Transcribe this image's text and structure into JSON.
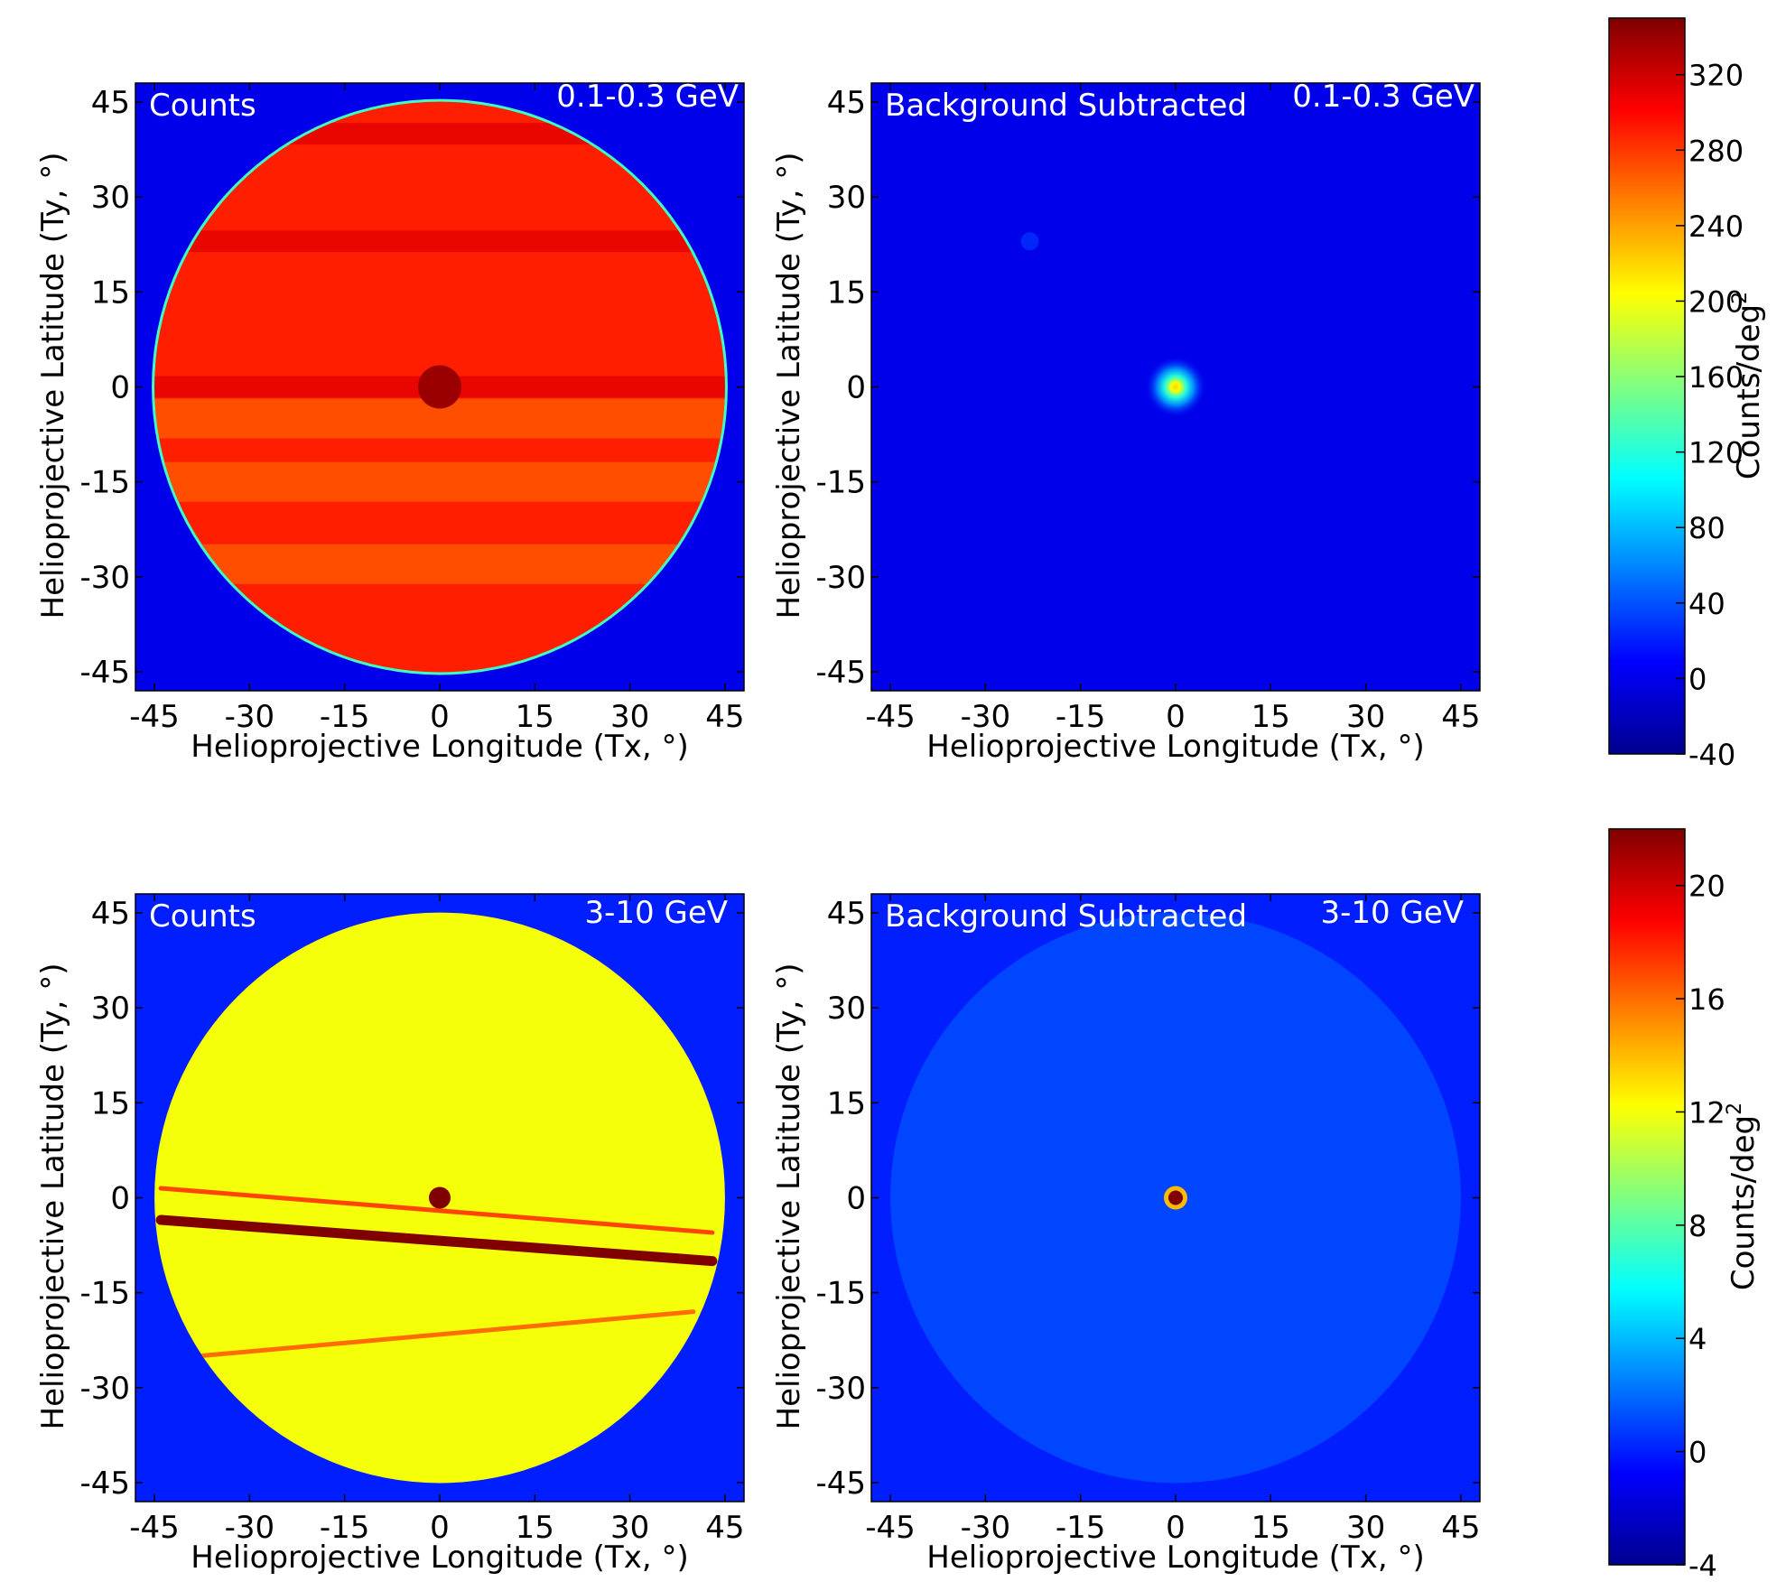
{
  "chart_data": [
    {
      "type": "heatmap",
      "label": "Counts",
      "energy": "0.1-0.3 GeV",
      "xlabel": "Helioprojective Longitude (Tx, °)",
      "ylabel": "Helioprojective Latitude (Ty, °)",
      "xlim": [
        -48,
        48
      ],
      "ylim": [
        -48,
        48
      ],
      "xticks": [
        -45,
        -30,
        -15,
        0,
        15,
        30,
        45
      ],
      "yticks": [
        -45,
        -30,
        -15,
        0,
        15,
        30,
        45
      ],
      "colorbar": "top",
      "features": {
        "fov_radius_deg": 45,
        "background_value": 0,
        "disk_level_mean": 290,
        "horizontal_dark_band_ty": [
          0,
          23,
          40
        ],
        "lighter_band_ty": [
          -5,
          -15,
          -28
        ],
        "dark_spot": {
          "tx": 0,
          "ty": 0,
          "value": 340
        }
      }
    },
    {
      "type": "heatmap",
      "label": "Background Subtracted",
      "energy": "0.1-0.3 GeV",
      "xlabel": "Helioprojective Longitude (Tx, °)",
      "ylabel": "Helioprojective Latitude (Ty, °)",
      "xlim": [
        -48,
        48
      ],
      "ylim": [
        -48,
        48
      ],
      "xticks": [
        -45,
        -30,
        -15,
        0,
        15,
        30,
        45
      ],
      "yticks": [
        -45,
        -30,
        -15,
        0,
        15,
        30,
        45
      ],
      "colorbar": "top",
      "features": {
        "background_value": 0,
        "point_source": {
          "tx": 0,
          "ty": 0,
          "peak": 220
        },
        "faint_source": {
          "tx": -23,
          "ty": 23,
          "peak": 30
        }
      }
    },
    {
      "type": "heatmap",
      "label": "Counts",
      "energy": "3-10 GeV",
      "xlabel": "Helioprojective Longitude (Tx, °)",
      "ylabel": "Helioprojective Latitude (Ty, °)",
      "xlim": [
        -48,
        48
      ],
      "ylim": [
        -48,
        48
      ],
      "xticks": [
        -45,
        -30,
        -15,
        0,
        15,
        30,
        45
      ],
      "yticks": [
        -45,
        -30,
        -15,
        0,
        15,
        30,
        45
      ],
      "colorbar": "bottom",
      "features": {
        "fov_radius_deg": 45,
        "background_value": 0,
        "disk_level_mean": 12,
        "dark_spot": {
          "tx": 0,
          "ty": 0,
          "value": 22
        },
        "tracks": [
          {
            "from": [
              -44,
              -3.5
            ],
            "to": [
              43,
              -10
            ],
            "value": 22
          },
          {
            "from": [
              -44,
              1.5
            ],
            "to": [
              43,
              -5.5
            ],
            "value": 17
          },
          {
            "from": [
              -38,
              -25
            ],
            "to": [
              40,
              -18
            ],
            "value": 16
          }
        ]
      }
    },
    {
      "type": "heatmap",
      "label": "Background Subtracted",
      "energy": "3-10 GeV",
      "xlabel": "Helioprojective Longitude (Tx, °)",
      "ylabel": "Helioprojective Latitude (Ty, °)",
      "xlim": [
        -48,
        48
      ],
      "ylim": [
        -48,
        48
      ],
      "xticks": [
        -45,
        -30,
        -15,
        0,
        15,
        30,
        45
      ],
      "yticks": [
        -45,
        -30,
        -15,
        0,
        15,
        30,
        45
      ],
      "colorbar": "bottom",
      "features": {
        "fov_radius_deg": 45,
        "background_value": 0,
        "noise_level_mean": 1,
        "point_source": {
          "tx": 0,
          "ty": 0,
          "peak": 22
        }
      }
    }
  ],
  "colorbars": {
    "top": {
      "label": "Counts/deg",
      "label_superscript": "2",
      "range": [
        -40,
        350
      ],
      "ticks": [
        -40,
        0,
        40,
        80,
        120,
        160,
        200,
        240,
        280,
        320
      ]
    },
    "bottom": {
      "label": "Counts/deg",
      "label_superscript": "2",
      "range": [
        -4,
        22
      ],
      "ticks": [
        -4,
        0,
        4,
        8,
        12,
        16,
        20
      ]
    }
  },
  "colormap": [
    "#00008f",
    "#0000ff",
    "#0080ff",
    "#00ffff",
    "#80ff80",
    "#ffff00",
    "#ff8000",
    "#ff0000",
    "#800000"
  ]
}
